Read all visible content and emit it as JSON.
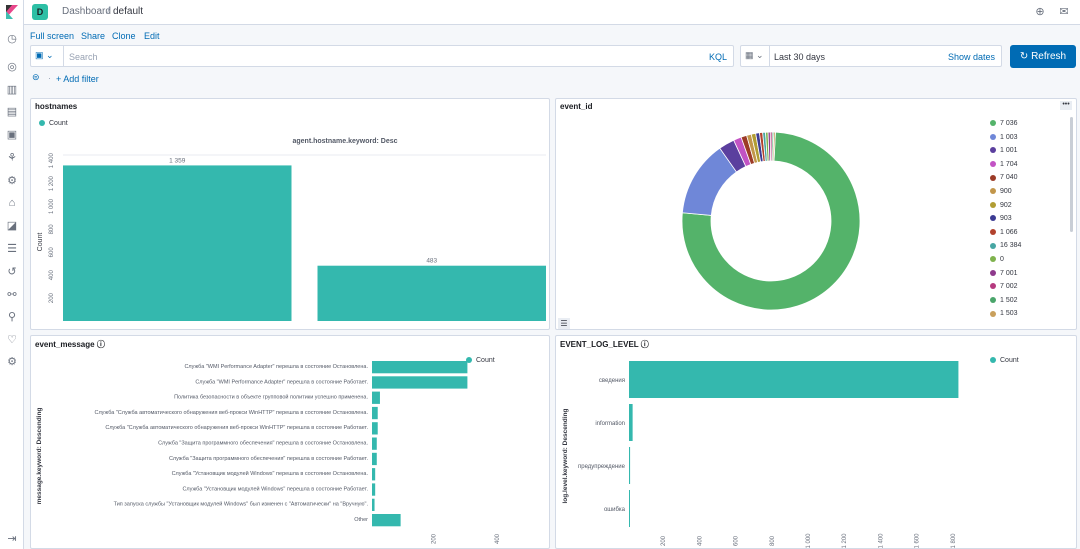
{
  "nav": {
    "icons": [
      "clock-icon",
      "compass-icon",
      "chart-icon",
      "dashboard-icon",
      "canvas-icon",
      "maps-icon",
      "ml-icon",
      "infra-icon",
      "logs-icon",
      "apm-icon",
      "uptime-icon",
      "siem-icon",
      "devtools-icon",
      "monitoring-icon",
      "management-icon"
    ]
  },
  "header": {
    "space_initial": "D",
    "breadcrumb_parent": "Dashboard",
    "breadcrumb_separator": "/",
    "breadcrumb_current": "default"
  },
  "actions": {
    "full_screen": "Full screen",
    "share": "Share",
    "clone": "Clone",
    "edit": "Edit"
  },
  "query": {
    "placeholder": "Search",
    "language": "KQL"
  },
  "time": {
    "range": "Last 30 days",
    "show_dates": "Show dates",
    "refresh": "Refresh"
  },
  "filters": {
    "add_filter": "+ Add filter"
  },
  "colors": {
    "teal": "#34b8ae",
    "primary": "#006bb4"
  },
  "panels": {
    "hostnames": {
      "title": "hostnames",
      "legend": "Count",
      "chart_title": "agent.hostname.keyword: Desc",
      "ylabel": "Count"
    },
    "event_id": {
      "title": "event_id"
    },
    "event_message": {
      "title": "event_message",
      "legend": "Count",
      "ylabel": "message.keyword: Descending"
    },
    "event_log_level": {
      "title": "EVENT_LOG_LEVEL",
      "legend": "Count",
      "ylabel": "log.level.keyword: Descending"
    }
  },
  "chart_data": [
    {
      "type": "bar",
      "panel": "hostnames",
      "categories": [
        "",
        ""
      ],
      "values": [
        1359,
        483
      ],
      "data_labels": [
        "1 359",
        "483"
      ],
      "ylabel": "Count",
      "yticks": [
        "200",
        "400",
        "600",
        "800",
        "1 000",
        "1 200",
        "1 400"
      ],
      "ylim": [
        0,
        1450
      ],
      "color": "#34b8ae"
    },
    {
      "type": "pie",
      "panel": "event_id",
      "donut": true,
      "labels": [
        "7 036",
        "1 003",
        "1 001",
        "1 704",
        "7 040",
        "900",
        "902",
        "903",
        "1 066",
        "16 384",
        "0",
        "7 001",
        "7 002",
        "1 502",
        "1 503"
      ],
      "values": [
        1320,
        240,
        50,
        25,
        18,
        15,
        14,
        12,
        10,
        9,
        8,
        7,
        6,
        5,
        5
      ],
      "colors": [
        "#54b36a",
        "#6f87d8",
        "#5b3f9e",
        "#c253c4",
        "#9c3b27",
        "#c2964a",
        "#b19d33",
        "#3c3b93",
        "#b2422d",
        "#47a6a3",
        "#7fb24d",
        "#8e3a8c",
        "#b53a7f",
        "#4aa56b",
        "#c9a05c"
      ]
    },
    {
      "type": "bar",
      "panel": "event_message",
      "orientation": "horizontal",
      "categories": [
        "Служба \"WMI Performance Adapter\" перешла в состояние Остановлена.",
        "Служба \"WMI Performance Adapter\" перешла в состояние Работает.",
        "Политика безопасности в объекте групповой политики успешно применена.",
        "Служба \"Служба автоматического обнаружения веб-прокси WinHTTP\" перешла в состояние Остановлена.",
        "Служба \"Служба автоматического обнаружения веб-прокси WinHTTP\" перешла в состояние Работает.",
        "Служба \"Защита программного обеспечения\" перешла в состояние Остановлена.",
        "Служба \"Защита программного обеспечения\" перешла в состояние Работает.",
        "Служба \"Установщик модулей Windows\" перешла в состояние Остановлена.",
        "Служба \"Установщик модулей Windows\" перешла в состояние Работает.",
        "Тип запуска службы \"Установщик модулей Windows\" был изменен с \"Автоматически\" на \"Вручную\".",
        "Other"
      ],
      "values": [
        300,
        300,
        25,
        18,
        18,
        15,
        15,
        10,
        10,
        8,
        90
      ],
      "xticks": [
        "200",
        "400"
      ],
      "xlim": [
        0,
        500
      ],
      "color": "#34b8ae"
    },
    {
      "type": "bar",
      "panel": "event_log_level",
      "orientation": "horizontal",
      "categories": [
        "сведения",
        "information",
        "предупреждение",
        "ошибка"
      ],
      "values": [
        1820,
        20,
        6,
        3
      ],
      "xticks": [
        "200",
        "400",
        "600",
        "800",
        "1 000",
        "1 200",
        "1 400",
        "1 600",
        "1 800"
      ],
      "xlim": [
        0,
        2000
      ],
      "color": "#34b8ae"
    }
  ]
}
